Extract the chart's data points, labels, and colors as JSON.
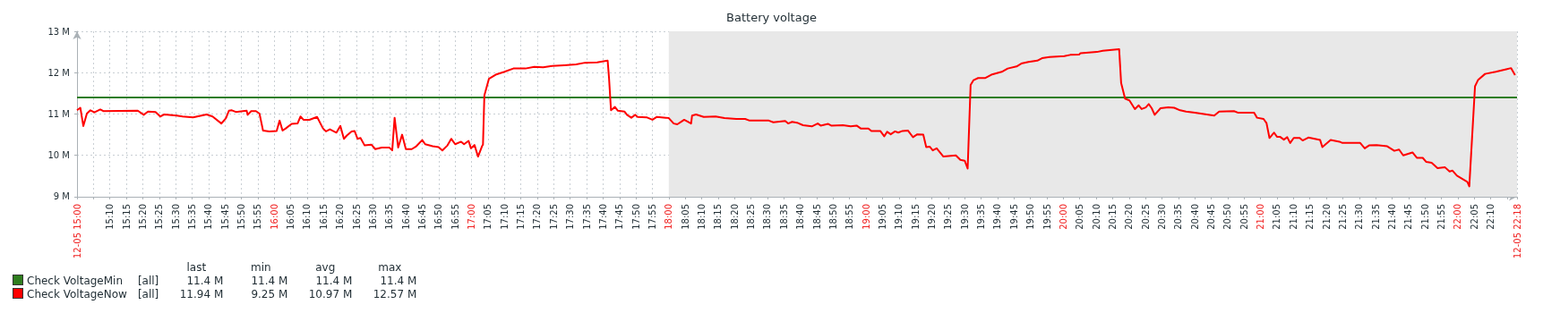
{
  "chart_data": {
    "type": "line",
    "title": "Battery voltage",
    "xlim": [
      15,
      22.3
    ],
    "xticks": [
      {
        "value": 15,
        "label": "12-05 15:00"
      },
      {
        "value": 15.0833,
        "label": null
      },
      {
        "value": 15.1667,
        "label": "15:10"
      },
      {
        "value": 15.25,
        "label": "15:15"
      },
      {
        "value": 15.3333,
        "label": "15:20"
      },
      {
        "value": 15.4167,
        "label": "15:25"
      },
      {
        "value": 15.5,
        "label": "15:30"
      },
      {
        "value": 15.5833,
        "label": "15:35"
      },
      {
        "value": 15.6667,
        "label": "15:40"
      },
      {
        "value": 15.75,
        "label": "15:45"
      },
      {
        "value": 15.8333,
        "label": "15:50"
      },
      {
        "value": 15.9167,
        "label": "15:55"
      },
      {
        "value": 16,
        "label": "16:00"
      },
      {
        "value": 16.0833,
        "label": "16:05"
      },
      {
        "value": 16.1667,
        "label": "16:10"
      },
      {
        "value": 16.25,
        "label": "16:15"
      },
      {
        "value": 16.3333,
        "label": "16:20"
      },
      {
        "value": 16.4167,
        "label": "16:25"
      },
      {
        "value": 16.5,
        "label": "16:30"
      },
      {
        "value": 16.5833,
        "label": "16:35"
      },
      {
        "value": 16.6667,
        "label": "16:40"
      },
      {
        "value": 16.75,
        "label": "16:45"
      },
      {
        "value": 16.8333,
        "label": "16:50"
      },
      {
        "value": 16.9167,
        "label": "16:55"
      },
      {
        "value": 17,
        "label": "17:00"
      },
      {
        "value": 17.0833,
        "label": "17:05"
      },
      {
        "value": 17.1667,
        "label": "17:10"
      },
      {
        "value": 17.25,
        "label": "17:15"
      },
      {
        "value": 17.3333,
        "label": "17:20"
      },
      {
        "value": 17.4167,
        "label": "17:25"
      },
      {
        "value": 17.5,
        "label": "17:30"
      },
      {
        "value": 17.5833,
        "label": "17:35"
      },
      {
        "value": 17.6667,
        "label": "17:40"
      },
      {
        "value": 17.75,
        "label": "17:45"
      },
      {
        "value": 17.8333,
        "label": "17:50"
      },
      {
        "value": 17.9167,
        "label": "17:55"
      },
      {
        "value": 18,
        "label": "18:00"
      },
      {
        "value": 18.0833,
        "label": "18:05"
      },
      {
        "value": 18.1667,
        "label": "18:10"
      },
      {
        "value": 18.25,
        "label": "18:15"
      },
      {
        "value": 18.3333,
        "label": "18:20"
      },
      {
        "value": 18.4167,
        "label": "18:25"
      },
      {
        "value": 18.5,
        "label": "18:30"
      },
      {
        "value": 18.5833,
        "label": "18:35"
      },
      {
        "value": 18.6667,
        "label": "18:40"
      },
      {
        "value": 18.75,
        "label": "18:45"
      },
      {
        "value": 18.8333,
        "label": "18:50"
      },
      {
        "value": 18.9167,
        "label": "18:55"
      },
      {
        "value": 19,
        "label": "19:00"
      },
      {
        "value": 19.0833,
        "label": "19:05"
      },
      {
        "value": 19.1667,
        "label": "19:10"
      },
      {
        "value": 19.25,
        "label": "19:15"
      },
      {
        "value": 19.3333,
        "label": "19:20"
      },
      {
        "value": 19.4167,
        "label": "19:25"
      },
      {
        "value": 19.5,
        "label": "19:30"
      },
      {
        "value": 19.5833,
        "label": "19:35"
      },
      {
        "value": 19.6667,
        "label": "19:40"
      },
      {
        "value": 19.75,
        "label": "19:45"
      },
      {
        "value": 19.8333,
        "label": "19:50"
      },
      {
        "value": 19.9167,
        "label": "19:55"
      },
      {
        "value": 20,
        "label": "20:00"
      },
      {
        "value": 20.0833,
        "label": "20:05"
      },
      {
        "value": 20.1667,
        "label": "20:10"
      },
      {
        "value": 20.25,
        "label": "20:15"
      },
      {
        "value": 20.3333,
        "label": "20:20"
      },
      {
        "value": 20.4167,
        "label": "20:25"
      },
      {
        "value": 20.5,
        "label": "20:30"
      },
      {
        "value": 20.5833,
        "label": "20:35"
      },
      {
        "value": 20.6667,
        "label": "20:40"
      },
      {
        "value": 20.75,
        "label": "20:45"
      },
      {
        "value": 20.8333,
        "label": "20:50"
      },
      {
        "value": 20.9167,
        "label": "20:55"
      },
      {
        "value": 21,
        "label": "21:00"
      },
      {
        "value": 21.0833,
        "label": "21:05"
      },
      {
        "value": 21.1667,
        "label": "21:10"
      },
      {
        "value": 21.25,
        "label": "21:15"
      },
      {
        "value": 21.3333,
        "label": "21:20"
      },
      {
        "value": 21.4167,
        "label": "21:25"
      },
      {
        "value": 21.5,
        "label": "21:30"
      },
      {
        "value": 21.5833,
        "label": "21:35"
      },
      {
        "value": 21.6667,
        "label": "21:40"
      },
      {
        "value": 21.75,
        "label": "21:45"
      },
      {
        "value": 21.8333,
        "label": "21:50"
      },
      {
        "value": 21.9167,
        "label": "21:55"
      },
      {
        "value": 22,
        "label": "22:00"
      },
      {
        "value": 22.0833,
        "label": "22:05"
      },
      {
        "value": 22.1667,
        "label": "22:10"
      },
      {
        "value": 22.25,
        "label": null
      },
      {
        "value": 22.3,
        "label": "12-05 22:18"
      }
    ],
    "ylim": [
      9,
      13
    ],
    "yticks": [
      {
        "value": 9,
        "label": "9 M"
      },
      {
        "value": 10,
        "label": "10 M"
      },
      {
        "value": 11,
        "label": "11 M"
      },
      {
        "value": 12,
        "label": "12 M"
      },
      {
        "value": 13,
        "label": "13 M"
      }
    ],
    "grid": true,
    "legend": "bottom left",
    "marker": "none",
    "line_style": "solid",
    "bands": [
      {
        "axis": "x",
        "from": 18,
        "to": 22.3,
        "color": "#e8e8e8"
      }
    ],
    "annotations": [
      "last",
      "min",
      "avg",
      "max",
      "[all]",
      "11.4 M",
      "11.4 M",
      "11.4 M",
      "11.4 M",
      "[all]",
      "11.94 M",
      "9.25 M",
      "10.97 M",
      "12.57 M"
    ],
    "series": [
      {
        "name": "Check VoltageMin",
        "color": "#2e7d1e",
        "x": [
          15,
          22.3
        ],
        "values": [
          11.4,
          11.4
        ]
      },
      {
        "name": "Check VoltageNow",
        "color": "#ff0000",
        "x": [
          15.0,
          15.017,
          15.032,
          15.05,
          15.068,
          15.088,
          15.118,
          15.133,
          15.308,
          15.338,
          15.36,
          15.398,
          15.422,
          15.443,
          15.505,
          15.535,
          15.588,
          15.657,
          15.687,
          15.732,
          15.755,
          15.77,
          15.785,
          15.805,
          15.86,
          15.865,
          15.883,
          15.907,
          15.925,
          15.943,
          15.975,
          16.012,
          16.027,
          16.042,
          16.058,
          16.088,
          16.118,
          16.133,
          16.148,
          16.178,
          16.217,
          16.247,
          16.262,
          16.282,
          16.315,
          16.335,
          16.353,
          16.368,
          16.392,
          16.407,
          16.422,
          16.437,
          16.458,
          16.492,
          16.512,
          16.545,
          16.583,
          16.598,
          16.61,
          16.628,
          16.648,
          16.667,
          16.697,
          16.72,
          16.75,
          16.765,
          16.803,
          16.833,
          16.852,
          16.878,
          16.897,
          16.917,
          16.947,
          16.962,
          16.985,
          16.997,
          17.015,
          17.033,
          17.053,
          17.058,
          17.065,
          17.088,
          17.122,
          17.167,
          17.212,
          17.273,
          17.318,
          17.363,
          17.408,
          17.47,
          17.53,
          17.575,
          17.637,
          17.69,
          17.697,
          17.707,
          17.727,
          17.742,
          17.775,
          17.788,
          17.81,
          17.83,
          17.842,
          17.887,
          17.917,
          17.94,
          17.985,
          18.0,
          18.025,
          18.043,
          18.078,
          18.113,
          18.118,
          18.138,
          18.177,
          18.237,
          18.282,
          18.342,
          18.387,
          18.41,
          18.507,
          18.53,
          18.59,
          18.605,
          18.625,
          18.65,
          18.68,
          18.725,
          18.755,
          18.77,
          18.808,
          18.823,
          18.883,
          18.922,
          18.952,
          18.973,
          19.012,
          19.027,
          19.072,
          19.092,
          19.107,
          19.125,
          19.147,
          19.163,
          19.185,
          19.212,
          19.238,
          19.26,
          19.29,
          19.305,
          19.323,
          19.338,
          19.358,
          19.392,
          19.455,
          19.478,
          19.5,
          19.515,
          19.53,
          19.545,
          19.568,
          19.605,
          19.635,
          19.688,
          19.718,
          19.763,
          19.787,
          19.823,
          19.868,
          19.892,
          19.93,
          20.005,
          20.035,
          20.08,
          20.087,
          20.17,
          20.2,
          20.283,
          20.293,
          20.313,
          20.335,
          20.363,
          20.382,
          20.397,
          20.418,
          20.433,
          20.448,
          20.463,
          20.493,
          20.532,
          20.562,
          20.592,
          20.622,
          20.667,
          20.712,
          20.765,
          20.79,
          20.865,
          20.887,
          20.967,
          20.982,
          21.015,
          21.03,
          21.045,
          21.068,
          21.083,
          21.098,
          21.118,
          21.135,
          21.15,
          21.168,
          21.198,
          21.213,
          21.242,
          21.302,
          21.313,
          21.355,
          21.4,
          21.415,
          21.505,
          21.528,
          21.55,
          21.588,
          21.642,
          21.678,
          21.702,
          21.723,
          21.77,
          21.792,
          21.822,
          21.84,
          21.867,
          21.897,
          21.935,
          21.958,
          21.973,
          21.995,
          22.048,
          22.058,
          22.087,
          22.102,
          22.138,
          22.192,
          22.245,
          22.27,
          22.29
        ],
        "values": [
          11.09,
          11.15,
          10.71,
          11.01,
          11.09,
          11.04,
          11.11,
          11.07,
          11.08,
          10.98,
          11.06,
          11.05,
          10.94,
          10.99,
          10.96,
          10.94,
          10.92,
          10.99,
          10.94,
          10.77,
          10.9,
          11.08,
          11.09,
          11.05,
          11.08,
          10.98,
          11.07,
          11.07,
          11.01,
          10.6,
          10.58,
          10.59,
          10.84,
          10.6,
          10.65,
          10.76,
          10.77,
          10.94,
          10.86,
          10.86,
          10.93,
          10.65,
          10.58,
          10.63,
          10.55,
          10.71,
          10.4,
          10.48,
          10.58,
          10.59,
          10.4,
          10.42,
          10.24,
          10.26,
          10.15,
          10.19,
          10.19,
          10.12,
          10.91,
          10.19,
          10.5,
          10.15,
          10.15,
          10.22,
          10.37,
          10.27,
          10.22,
          10.2,
          10.12,
          10.24,
          10.4,
          10.27,
          10.33,
          10.27,
          10.35,
          10.17,
          10.25,
          9.97,
          10.22,
          10.26,
          11.45,
          11.85,
          11.95,
          12.02,
          12.1,
          12.1,
          12.14,
          12.13,
          12.16,
          12.18,
          12.2,
          12.24,
          12.25,
          12.29,
          11.87,
          11.09,
          11.17,
          11.08,
          11.06,
          10.98,
          10.91,
          10.98,
          10.93,
          10.92,
          10.86,
          10.93,
          10.91,
          10.9,
          10.77,
          10.75,
          10.86,
          10.77,
          10.96,
          10.99,
          10.93,
          10.94,
          10.9,
          10.88,
          10.88,
          10.84,
          10.84,
          10.8,
          10.83,
          10.77,
          10.81,
          10.79,
          10.73,
          10.7,
          10.77,
          10.72,
          10.76,
          10.72,
          10.73,
          10.7,
          10.72,
          10.65,
          10.65,
          10.59,
          10.59,
          10.46,
          10.57,
          10.51,
          10.58,
          10.55,
          10.59,
          10.6,
          10.44,
          10.51,
          10.5,
          10.2,
          10.21,
          10.12,
          10.17,
          9.97,
          10.0,
          9.89,
          9.87,
          9.68,
          11.7,
          11.82,
          11.87,
          11.87,
          11.95,
          12.02,
          12.1,
          12.15,
          12.22,
          12.26,
          12.29,
          12.35,
          12.38,
          12.4,
          12.43,
          12.44,
          12.47,
          12.5,
          12.53,
          12.57,
          11.75,
          11.37,
          11.33,
          11.12,
          11.21,
          11.12,
          11.16,
          11.24,
          11.14,
          10.98,
          11.14,
          11.16,
          11.15,
          11.09,
          11.06,
          11.03,
          11.0,
          10.96,
          11.06,
          11.07,
          11.03,
          11.03,
          10.91,
          10.88,
          10.78,
          10.42,
          10.55,
          10.45,
          10.45,
          10.38,
          10.44,
          10.3,
          10.42,
          10.42,
          10.36,
          10.43,
          10.37,
          10.2,
          10.37,
          10.33,
          10.3,
          10.3,
          10.17,
          10.24,
          10.25,
          10.22,
          10.11,
          10.14,
          10.0,
          10.07,
          9.94,
          9.94,
          9.84,
          9.82,
          9.69,
          9.71,
          9.61,
          9.63,
          9.51,
          9.36,
          9.25,
          11.67,
          11.82,
          11.97,
          12.02,
          12.08,
          12.11,
          11.94
        ]
      }
    ]
  }
}
